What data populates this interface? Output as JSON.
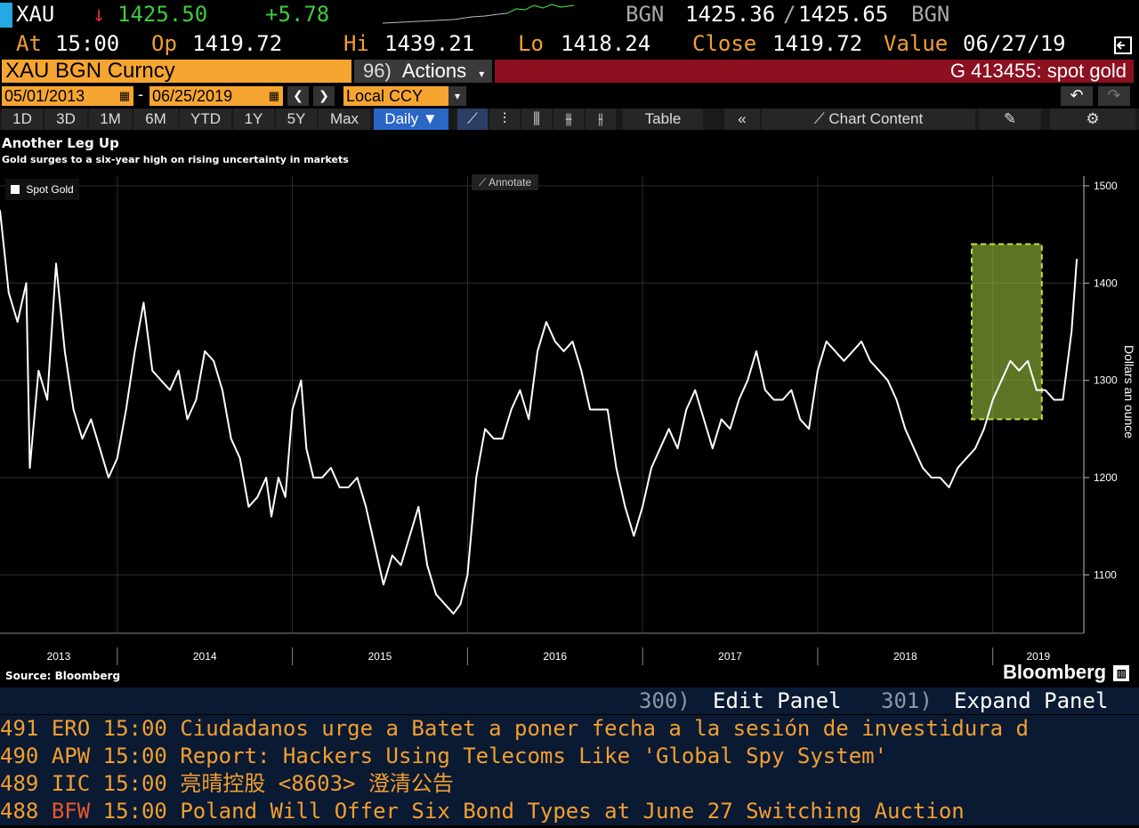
{
  "quote": {
    "ticker": "XAU",
    "arrow": "↓",
    "last": "1425.50",
    "change": "+5.78",
    "source": "BGN",
    "bid": "1425.36",
    "separator": "/",
    "ask": "1425.65",
    "source2": "BGN",
    "at_label": "At",
    "at_value": "15:00",
    "op_label": "Op",
    "op_value": "1419.72",
    "hi_label": "Hi",
    "hi_value": "1439.21",
    "lo_label": "Lo",
    "lo_value": "1418.24",
    "close_label": "Close",
    "close_value": "1419.72",
    "value_label": "Value",
    "value_date": "06/27/19"
  },
  "security_field": "XAU BGN Curncy",
  "actions": {
    "code": "96)",
    "label": "Actions"
  },
  "title_bar": "G 413455: spot gold",
  "dates": {
    "start": "05/01/2013",
    "dash": "-",
    "end": "06/25/2019",
    "currency": "Local CCY"
  },
  "toolbar": {
    "periods": [
      "1D",
      "3D",
      "1M",
      "6M",
      "YTD",
      "1Y",
      "5Y",
      "Max"
    ],
    "frequency": "Daily",
    "table": "Table",
    "chart_content": "Chart Content"
  },
  "chart": {
    "annotate": "Annotate",
    "source": "Source: Bloomberg",
    "brand": "Bloomberg"
  },
  "chart_data": {
    "type": "line",
    "title": "Another Leg Up",
    "subtitle": "Gold surges to a six-year high on rising uncertainty in markets",
    "ylabel": "Dollars an ounce",
    "ylim": [
      1040,
      1510
    ],
    "yticks": [
      1100,
      1200,
      1300,
      1400,
      1500
    ],
    "xticks": [
      "2013",
      "2014",
      "2015",
      "2016",
      "2017",
      "2018",
      "2019"
    ],
    "legend": "top-left",
    "series": [
      {
        "name": "Spot Gold",
        "color": "#ffffff",
        "x": [
          2013.33,
          2013.38,
          2013.43,
          2013.48,
          2013.5,
          2013.55,
          2013.6,
          2013.65,
          2013.7,
          2013.75,
          2013.8,
          2013.85,
          2013.9,
          2013.95,
          2014.0,
          2014.05,
          2014.1,
          2014.15,
          2014.2,
          2014.25,
          2014.3,
          2014.35,
          2014.4,
          2014.45,
          2014.5,
          2014.55,
          2014.6,
          2014.65,
          2014.7,
          2014.75,
          2014.8,
          2014.85,
          2014.88,
          2014.92,
          2014.96,
          2015.0,
          2015.05,
          2015.08,
          2015.12,
          2015.17,
          2015.22,
          2015.27,
          2015.32,
          2015.37,
          2015.42,
          2015.47,
          2015.52,
          2015.57,
          2015.62,
          2015.67,
          2015.72,
          2015.77,
          2015.82,
          2015.87,
          2015.92,
          2015.96,
          2016.0,
          2016.05,
          2016.1,
          2016.15,
          2016.2,
          2016.25,
          2016.3,
          2016.35,
          2016.4,
          2016.45,
          2016.5,
          2016.55,
          2016.6,
          2016.65,
          2016.7,
          2016.75,
          2016.8,
          2016.85,
          2016.9,
          2016.95,
          2017.0,
          2017.05,
          2017.1,
          2017.15,
          2017.2,
          2017.25,
          2017.3,
          2017.35,
          2017.4,
          2017.45,
          2017.5,
          2017.55,
          2017.6,
          2017.65,
          2017.7,
          2017.75,
          2017.8,
          2017.85,
          2017.9,
          2017.95,
          2018.0,
          2018.05,
          2018.1,
          2018.15,
          2018.2,
          2018.25,
          2018.3,
          2018.35,
          2018.4,
          2018.45,
          2018.5,
          2018.55,
          2018.6,
          2018.65,
          2018.7,
          2018.75,
          2018.8,
          2018.85,
          2018.9,
          2018.95,
          2019.0,
          2019.05,
          2019.1,
          2019.15,
          2019.2,
          2019.25,
          2019.3,
          2019.35,
          2019.4,
          2019.45,
          2019.48
        ],
        "values": [
          1475,
          1390,
          1360,
          1400,
          1210,
          1310,
          1280,
          1420,
          1330,
          1270,
          1240,
          1260,
          1230,
          1200,
          1220,
          1270,
          1330,
          1380,
          1310,
          1300,
          1290,
          1310,
          1260,
          1280,
          1330,
          1320,
          1290,
          1240,
          1220,
          1170,
          1180,
          1200,
          1160,
          1200,
          1180,
          1270,
          1300,
          1230,
          1200,
          1200,
          1210,
          1190,
          1190,
          1200,
          1170,
          1130,
          1090,
          1120,
          1110,
          1140,
          1170,
          1110,
          1080,
          1070,
          1060,
          1070,
          1100,
          1200,
          1250,
          1240,
          1240,
          1270,
          1290,
          1260,
          1330,
          1360,
          1340,
          1330,
          1340,
          1310,
          1270,
          1270,
          1270,
          1210,
          1170,
          1140,
          1170,
          1210,
          1230,
          1250,
          1230,
          1270,
          1290,
          1260,
          1230,
          1260,
          1250,
          1280,
          1300,
          1330,
          1290,
          1280,
          1280,
          1290,
          1260,
          1250,
          1310,
          1340,
          1330,
          1320,
          1330,
          1340,
          1320,
          1310,
          1300,
          1280,
          1250,
          1230,
          1210,
          1200,
          1200,
          1190,
          1210,
          1220,
          1230,
          1250,
          1280,
          1300,
          1320,
          1310,
          1320,
          1290,
          1290,
          1280,
          1280,
          1350,
          1425
        ]
      }
    ],
    "highlight": {
      "x_start": 2018.88,
      "x_end": 2019.28,
      "y_start": 1260,
      "y_end": 1440,
      "color": "#99c23a"
    }
  },
  "panel": {
    "edit_code": "300)",
    "edit_label": "Edit Panel",
    "expand_code": "301)",
    "expand_label": "Expand Panel"
  },
  "news": [
    {
      "num": "491",
      "src": "ERO",
      "time": "15:00",
      "headline": "Ciudadanos urge a Batet a poner fecha a la sesión de investidura d"
    },
    {
      "num": "490",
      "src": "APW",
      "time": "15:00",
      "headline": "Report: Hackers Using Telecoms Like 'Global Spy System'"
    },
    {
      "num": "489",
      "src": "IIC",
      "time": "15:00",
      "headline": "亮晴控股 <8603>  澄清公告"
    },
    {
      "num": "488",
      "src": "BFW",
      "time": "15:00",
      "headline": "Poland Will Offer Six Bond Types at June 27 Switching Auction"
    }
  ],
  "colors": {
    "accent": "#f39f2f",
    "up": "#3ecb3e",
    "down": "#e02d2d",
    "title_bar": "#8c1020",
    "active_tab": "#2a66c4"
  }
}
